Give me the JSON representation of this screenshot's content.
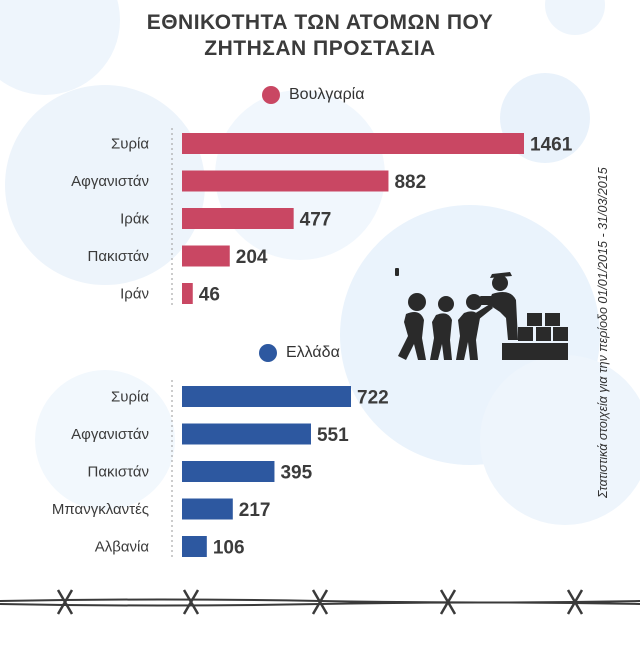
{
  "title_lines": [
    "ΕΘΝΙΚΟΤΗΤΑ ΤΩΝ ΑΤΟΜΩΝ ΠΟΥ",
    "ΖΗΤΗΣΑΝ ΠΡΟΣΤΑΣΙΑ"
  ],
  "side_note": "Στατιστικά στοιχεία για την περίοδο 01/01/2015 - 31/03/2015",
  "colors": {
    "bulgaria": "#c94763",
    "greece": "#2d58a0",
    "text": "#3b3b3b",
    "bubble": "#e9f2fb"
  },
  "chart_data": [
    {
      "type": "bar",
      "orientation": "horizontal",
      "legend": "Βουλγαρία",
      "categories": [
        "Συρία",
        "Αφγανιστάν",
        "Ιράκ",
        "Πακιστάν",
        "Ιράν"
      ],
      "values": [
        1461,
        882,
        477,
        204,
        46
      ],
      "color": "#c94763"
    },
    {
      "type": "bar",
      "orientation": "horizontal",
      "legend": "Ελλάδα",
      "categories": [
        "Συρία",
        "Αφγανιστάν",
        "Πακιστάν",
        "Μπανγκλαντές",
        "Αλβανία"
      ],
      "values": [
        722,
        551,
        395,
        217,
        106
      ],
      "color": "#2d58a0"
    }
  ],
  "icons": [
    "refugees-aid-icon",
    "barbed-wire-icon"
  ]
}
